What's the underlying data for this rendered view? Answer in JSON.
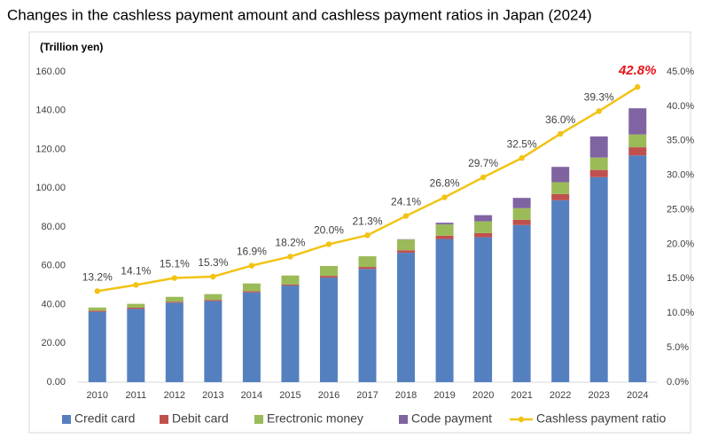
{
  "chart_data": {
    "type": "bar",
    "stacked": true,
    "title": "Changes in the cashless payment amount and cashless payment ratios in Japan (2024)",
    "y_label": "(Trillion yen)",
    "categories": [
      "2010",
      "2011",
      "2012",
      "2013",
      "2014",
      "2015",
      "2016",
      "2017",
      "2018",
      "2019",
      "2020",
      "2021",
      "2022",
      "2023",
      "2024"
    ],
    "series": [
      {
        "name": "Credit card",
        "color": "#5580c0",
        "values": [
          36.3,
          37.8,
          41.0,
          41.8,
          46.3,
          49.8,
          53.9,
          58.4,
          66.7,
          73.8,
          74.7,
          81.0,
          93.8,
          105.7,
          116.9
        ]
      },
      {
        "name": "Debit card",
        "color": "#c0504d",
        "values": [
          0.6,
          0.6,
          0.5,
          0.6,
          0.6,
          0.6,
          0.9,
          1.0,
          1.3,
          1.7,
          2.2,
          2.7,
          3.2,
          3.7,
          4.2
        ]
      },
      {
        "name": "Erectronic money",
        "color": "#9bbb59",
        "values": [
          1.6,
          2.0,
          2.5,
          3.0,
          4.0,
          4.6,
          5.1,
          5.5,
          5.5,
          5.8,
          6.0,
          6.0,
          6.1,
          6.4,
          6.6
        ]
      },
      {
        "name": "Code payment",
        "color": "#8064a2",
        "values": [
          0,
          0,
          0,
          0,
          0,
          0,
          0,
          0,
          0.2,
          0.9,
          3.2,
          5.3,
          7.9,
          10.9,
          13.5
        ]
      },
      {
        "name": "Cashless payment ratio",
        "color": "#f2c314",
        "type": "line",
        "axis": "y2",
        "values": [
          13.2,
          14.1,
          15.1,
          15.3,
          16.9,
          18.2,
          20.0,
          21.3,
          24.1,
          26.8,
          29.7,
          32.5,
          36.0,
          39.3,
          42.8
        ],
        "value_labels": [
          "13.2%",
          "14.1%",
          "15.1%",
          "15.3%",
          "16.9%",
          "18.2%",
          "20.0%",
          "21.3%",
          "24.1%",
          "26.8%",
          "29.7%",
          "32.5%",
          "36.0%",
          "39.3%",
          "42.8%"
        ]
      }
    ],
    "ylim": [
      0,
      160
    ],
    "yticks": [
      {
        "value": 0,
        "label": "0.00"
      },
      {
        "value": 20,
        "label": "20.00"
      },
      {
        "value": 40,
        "label": "40.00"
      },
      {
        "value": 60,
        "label": "60.00"
      },
      {
        "value": 80,
        "label": "80.00"
      },
      {
        "value": 100,
        "label": "100.00"
      },
      {
        "value": 120,
        "label": "120.00"
      },
      {
        "value": 140,
        "label": "140.00"
      },
      {
        "value": 160,
        "label": "160.00"
      }
    ],
    "y2lim": [
      0,
      45
    ],
    "y2ticks": [
      {
        "value": 0,
        "label": "0.0%"
      },
      {
        "value": 5,
        "label": "5.0%"
      },
      {
        "value": 10,
        "label": "10.0%"
      },
      {
        "value": 15,
        "label": "15.0%"
      },
      {
        "value": 20,
        "label": "20.0%"
      },
      {
        "value": 25,
        "label": "25.0%"
      },
      {
        "value": 30,
        "label": "30.0%"
      },
      {
        "value": 35,
        "label": "35.0%"
      },
      {
        "value": 40,
        "label": "40.0%"
      },
      {
        "value": 45,
        "label": "45.0%"
      }
    ],
    "grid": false,
    "legend": "bottom"
  }
}
